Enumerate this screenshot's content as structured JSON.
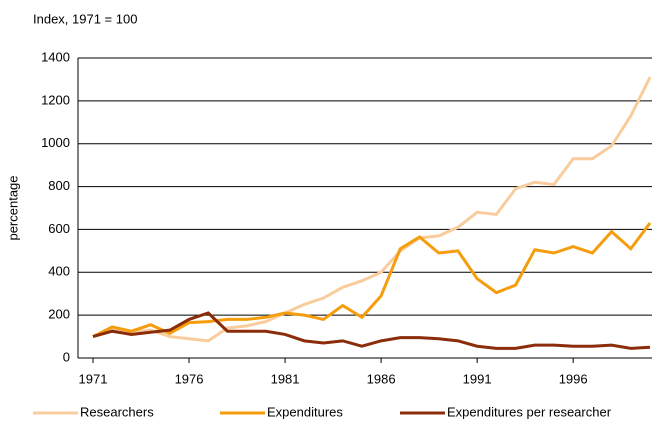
{
  "chart_data": {
    "type": "line",
    "subtitle": "Index, 1971 = 100",
    "y_label": "percentage",
    "x": [
      1971,
      1972,
      1973,
      1974,
      1975,
      1976,
      1977,
      1978,
      1979,
      1980,
      1981,
      1982,
      1983,
      1984,
      1985,
      1986,
      1987,
      1988,
      1989,
      1990,
      1991,
      1992,
      1993,
      1994,
      1995,
      1996,
      1997,
      1998,
      1999,
      2000
    ],
    "series": [
      {
        "name": "Researchers",
        "color": "#f9cc9d",
        "values": [
          100,
          130,
          120,
          130,
          100,
          90,
          80,
          140,
          150,
          170,
          210,
          250,
          280,
          330,
          360,
          400,
          500,
          560,
          570,
          610,
          680,
          670,
          790,
          820,
          810,
          930,
          930,
          990,
          1130,
          1310
        ]
      },
      {
        "name": "Expenditures",
        "color": "#f59d0d",
        "values": [
          100,
          145,
          125,
          155,
          115,
          165,
          170,
          180,
          180,
          190,
          210,
          200,
          180,
          245,
          190,
          290,
          510,
          565,
          490,
          500,
          370,
          305,
          340,
          505,
          490,
          520,
          490,
          590,
          510,
          630
        ]
      },
      {
        "name": "Expenditures per researcher",
        "color": "#8b2c0a",
        "values": [
          100,
          125,
          110,
          120,
          130,
          180,
          210,
          125,
          125,
          125,
          110,
          80,
          70,
          80,
          55,
          80,
          95,
          95,
          90,
          80,
          55,
          45,
          45,
          60,
          60,
          55,
          55,
          60,
          45,
          50
        ]
      }
    ],
    "xlim": [
      1971,
      2000
    ],
    "xticks": [
      1971,
      1976,
      1981,
      1986,
      1991,
      1996
    ],
    "ylim": [
      0,
      1400
    ],
    "yticks": [
      0,
      200,
      400,
      600,
      800,
      1000,
      1200,
      1400
    ],
    "grid": true,
    "legend": "bottom"
  }
}
